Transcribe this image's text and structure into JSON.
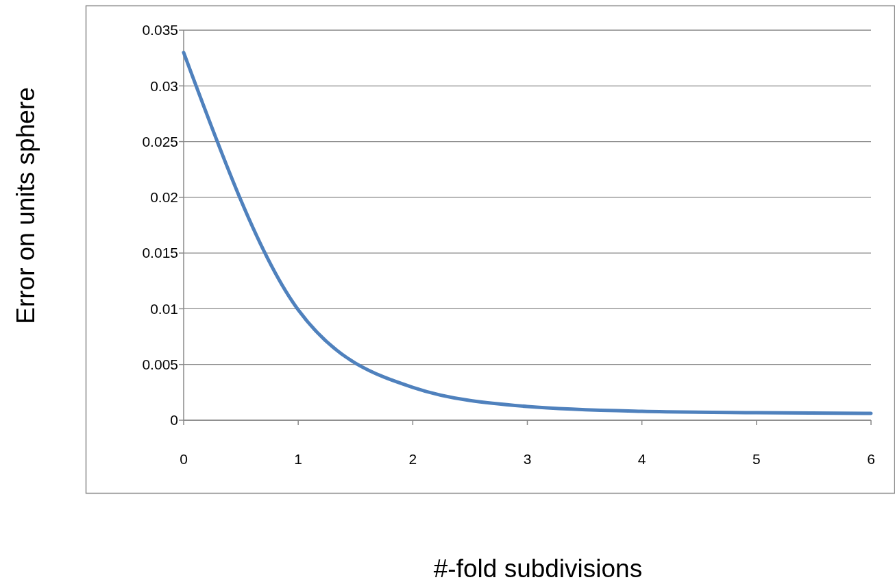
{
  "chart_data": {
    "type": "line",
    "xlabel": "#-fold subdivisions",
    "ylabel": "Error on units sphere",
    "x": [
      0,
      1,
      2,
      3,
      4,
      5,
      6
    ],
    "series": [
      {
        "color": "#4f81bd",
        "values": [
          0.033,
          0.0099,
          0.00295,
          0.00123,
          0.0008,
          0.00068,
          0.00062
        ]
      }
    ],
    "xlim": [
      0,
      6
    ],
    "xticks": [
      0,
      1,
      2,
      3,
      4,
      5,
      6
    ],
    "ylim": [
      0,
      0.035
    ],
    "yticks": [
      0,
      0.005,
      0.01,
      0.015,
      0.02,
      0.025,
      0.03,
      0.035
    ],
    "grid": "y",
    "marker": "none",
    "line_style": "solid"
  }
}
